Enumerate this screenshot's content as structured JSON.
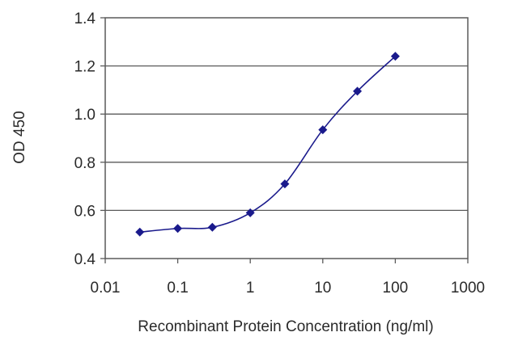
{
  "chart_data": {
    "type": "line",
    "title": "",
    "xlabel": "Recombinant Protein Concentration (ng/ml)",
    "ylabel": "OD 450",
    "x_scale": "log",
    "xlim": [
      0.01,
      1000
    ],
    "ylim": [
      0.4,
      1.4
    ],
    "x_ticks": [
      "0.01",
      "0.1",
      "1",
      "10",
      "100",
      "1000"
    ],
    "y_ticks": [
      "0.4",
      "0.6",
      "0.8",
      "1.0",
      "1.2",
      "1.4"
    ],
    "grid": "horizontal",
    "legend": "none",
    "colors": {
      "series": "#1a1a8c",
      "grid": "#5a5a5a",
      "frame": "#5a5a5a"
    },
    "series": [
      {
        "x": [
          0.03,
          0.1,
          0.3,
          1,
          3,
          10,
          30,
          100
        ],
        "y": [
          0.51,
          0.525,
          0.53,
          0.59,
          0.71,
          0.935,
          1.095,
          1.24
        ]
      }
    ]
  }
}
